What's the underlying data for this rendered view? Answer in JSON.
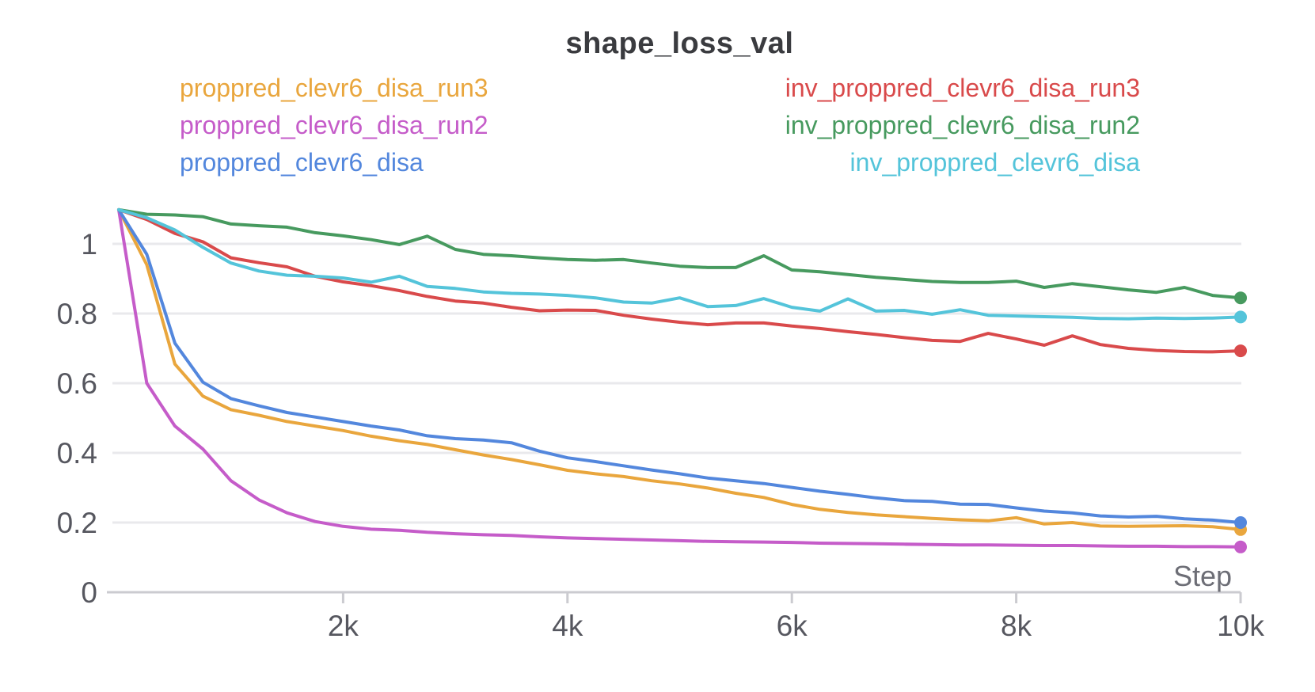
{
  "header": {
    "title": "shape_loss_val"
  },
  "chart_data": {
    "type": "line",
    "title": "shape_loss_val",
    "xlabel": "Step",
    "ylabel": "",
    "xlim": [
      0,
      10000
    ],
    "ylim": [
      0,
      1.15
    ],
    "grid": true,
    "legend_position": "top",
    "x_ticks": [
      {
        "value": 2000,
        "label": "2k"
      },
      {
        "value": 4000,
        "label": "4k"
      },
      {
        "value": 6000,
        "label": "6k"
      },
      {
        "value": 8000,
        "label": "8k"
      },
      {
        "value": 10000,
        "label": "10k"
      }
    ],
    "y_ticks": [
      {
        "value": 0,
        "label": "0"
      },
      {
        "value": 0.2,
        "label": "0.2"
      },
      {
        "value": 0.4,
        "label": "0.4"
      },
      {
        "value": 0.6,
        "label": "0.6"
      },
      {
        "value": 0.8,
        "label": "0.8"
      },
      {
        "value": 1,
        "label": "1"
      }
    ],
    "x": [
      0,
      250,
      500,
      750,
      1000,
      1250,
      1500,
      1750,
      2000,
      2250,
      2500,
      2750,
      3000,
      3250,
      3500,
      3750,
      4000,
      4250,
      4500,
      4750,
      5000,
      5250,
      5500,
      5750,
      6000,
      6250,
      6500,
      6750,
      7000,
      7250,
      7500,
      7750,
      8000,
      8250,
      8500,
      8750,
      9000,
      9250,
      9500,
      9750,
      10000
    ],
    "series": [
      {
        "name": "proppred_clevr6_disa_run3",
        "color": "#E9A63D",
        "values": [
          1.098,
          0.94,
          0.655,
          0.563,
          0.524,
          0.508,
          0.49,
          0.477,
          0.464,
          0.448,
          0.435,
          0.424,
          0.409,
          0.394,
          0.381,
          0.366,
          0.35,
          0.34,
          0.332,
          0.32,
          0.311,
          0.299,
          0.284,
          0.272,
          0.252,
          0.238,
          0.229,
          0.222,
          0.217,
          0.212,
          0.208,
          0.205,
          0.214,
          0.196,
          0.2,
          0.19,
          0.189,
          0.19,
          0.191,
          0.188,
          0.18
        ]
      },
      {
        "name": "proppred_clevr6_disa_run2",
        "color": "#C55CC9",
        "values": [
          1.098,
          0.6,
          0.477,
          0.411,
          0.32,
          0.265,
          0.228,
          0.203,
          0.189,
          0.181,
          0.178,
          0.172,
          0.168,
          0.165,
          0.163,
          0.159,
          0.156,
          0.154,
          0.152,
          0.15,
          0.148,
          0.146,
          0.145,
          0.144,
          0.143,
          0.141,
          0.14,
          0.139,
          0.138,
          0.137,
          0.136,
          0.136,
          0.135,
          0.134,
          0.134,
          0.133,
          0.132,
          0.132,
          0.131,
          0.131,
          0.13
        ]
      },
      {
        "name": "proppred_clevr6_disa",
        "color": "#5387DD",
        "values": [
          1.098,
          0.97,
          0.715,
          0.603,
          0.556,
          0.535,
          0.516,
          0.503,
          0.49,
          0.477,
          0.466,
          0.449,
          0.441,
          0.437,
          0.429,
          0.405,
          0.386,
          0.375,
          0.363,
          0.351,
          0.34,
          0.328,
          0.32,
          0.312,
          0.301,
          0.29,
          0.281,
          0.271,
          0.263,
          0.261,
          0.253,
          0.252,
          0.242,
          0.233,
          0.228,
          0.219,
          0.216,
          0.218,
          0.211,
          0.207,
          0.2
        ]
      },
      {
        "name": "inv_proppred_clevr6_disa_run3",
        "color": "#D94A4B",
        "values": [
          1.098,
          1.07,
          1.03,
          1.006,
          0.96,
          0.946,
          0.934,
          0.907,
          0.891,
          0.88,
          0.866,
          0.849,
          0.836,
          0.83,
          0.818,
          0.808,
          0.81,
          0.809,
          0.795,
          0.784,
          0.775,
          0.768,
          0.773,
          0.773,
          0.764,
          0.757,
          0.748,
          0.74,
          0.731,
          0.723,
          0.72,
          0.743,
          0.727,
          0.709,
          0.736,
          0.711,
          0.7,
          0.694,
          0.691,
          0.69,
          0.693
        ]
      },
      {
        "name": "inv_proppred_clevr6_disa_run2",
        "color": "#479A5F",
        "values": [
          1.098,
          1.085,
          1.083,
          1.078,
          1.057,
          1.052,
          1.048,
          1.032,
          1.023,
          1.012,
          0.998,
          1.022,
          0.984,
          0.97,
          0.966,
          0.96,
          0.955,
          0.953,
          0.955,
          0.945,
          0.936,
          0.932,
          0.932,
          0.966,
          0.925,
          0.92,
          0.912,
          0.904,
          0.898,
          0.892,
          0.889,
          0.889,
          0.893,
          0.875,
          0.886,
          0.877,
          0.868,
          0.861,
          0.875,
          0.852,
          0.845
        ]
      },
      {
        "name": "inv_proppred_clevr6_disa",
        "color": "#54C4DA",
        "values": [
          1.098,
          1.075,
          1.04,
          0.99,
          0.945,
          0.922,
          0.91,
          0.907,
          0.902,
          0.89,
          0.907,
          0.878,
          0.872,
          0.862,
          0.858,
          0.856,
          0.852,
          0.845,
          0.833,
          0.83,
          0.845,
          0.82,
          0.823,
          0.843,
          0.818,
          0.807,
          0.842,
          0.807,
          0.809,
          0.798,
          0.811,
          0.795,
          0.793,
          0.791,
          0.789,
          0.786,
          0.785,
          0.787,
          0.786,
          0.787,
          0.79
        ]
      }
    ],
    "legend_rows": [
      [
        0,
        3
      ],
      [
        1,
        4
      ],
      [
        2,
        5
      ]
    ],
    "colors": {
      "grid": "#E9E9EC",
      "axis": "#CBCBD0",
      "tick_text": "#56575F",
      "step_text": "#6D6E76",
      "title_text": "#3A3B3F"
    }
  }
}
